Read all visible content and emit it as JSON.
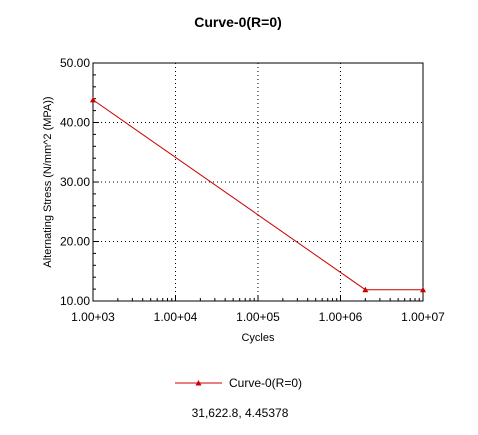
{
  "chart_data": {
    "type": "line",
    "title": "Curve-0(R=0)",
    "xlabel": "Cycles",
    "ylabel": "Alternating Stress (N/mm^2 (MPA))",
    "x_scale": "log",
    "xlim": [
      1000,
      10000000
    ],
    "ylim": [
      10,
      50
    ],
    "x_ticks": [
      1000,
      10000,
      100000,
      1000000,
      10000000
    ],
    "x_tick_labels": [
      "1.00+03",
      "1.00+04",
      "1.00+05",
      "1.00+06",
      "1.00+07"
    ],
    "y_ticks": [
      10,
      20,
      30,
      40,
      50
    ],
    "y_tick_labels": [
      "10.00",
      "20.00",
      "30.00",
      "40.00",
      "50.00"
    ],
    "grid": true,
    "legend_position": "bottom-center",
    "series": [
      {
        "name": "Curve-0(R=0)",
        "color": "#cc0000",
        "x": [
          1000,
          2000000,
          10000000
        ],
        "y": [
          43.8,
          11.9,
          11.9
        ]
      }
    ]
  },
  "cursor_readout": "31,622.8, 4.45378"
}
